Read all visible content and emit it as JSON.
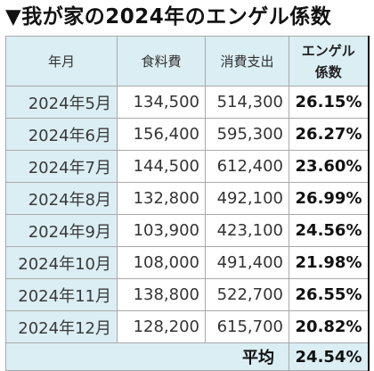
{
  "title": "▼我が家の2024年のエンゲル係数",
  "table": {
    "headers": {
      "month": "年月",
      "food": "食料費",
      "spending": "消費支出",
      "engel_line1": "エンゲル",
      "engel_line2": "係数"
    },
    "rows": [
      {
        "month": "2024年5月",
        "food": "134,500",
        "spending": "514,300",
        "ratio": "26.15%"
      },
      {
        "month": "2024年6月",
        "food": "156,400",
        "spending": "595,300",
        "ratio": "26.27%"
      },
      {
        "month": "2024年7月",
        "food": "144,500",
        "spending": "612,400",
        "ratio": "23.60%"
      },
      {
        "month": "2024年8月",
        "food": "132,800",
        "spending": "492,100",
        "ratio": "26.99%"
      },
      {
        "month": "2024年9月",
        "food": "103,900",
        "spending": "423,100",
        "ratio": "24.56%"
      },
      {
        "month": "2024年10月",
        "food": "108,000",
        "spending": "491,400",
        "ratio": "21.98%"
      },
      {
        "month": "2024年11月",
        "food": "138,800",
        "spending": "522,700",
        "ratio": "26.55%"
      },
      {
        "month": "2024年12月",
        "food": "128,200",
        "spending": "615,700",
        "ratio": "20.82%"
      }
    ],
    "footer": {
      "label": "平均",
      "value": "24.54%"
    }
  },
  "colors": {
    "header_fill": "#daeef3",
    "border": "#a9a9a9"
  }
}
